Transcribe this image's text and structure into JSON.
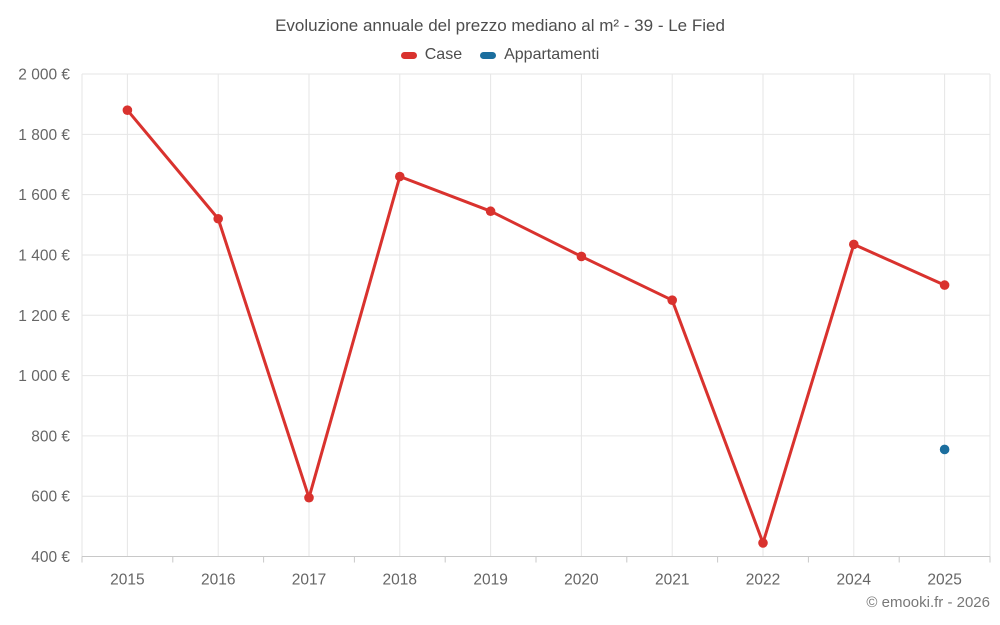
{
  "title": "Evoluzione annuale del prezzo mediano al m² - 39 - Le Fied",
  "legend": {
    "items": [
      {
        "label": "Case",
        "color": "#d9322e"
      },
      {
        "label": "Appartamenti",
        "color": "#1b6e9e"
      }
    ]
  },
  "attribution": "© emooki.fr - 2026",
  "colors": {
    "grid": "#e6e6e6",
    "axis_line": "#c8c8c8",
    "tick_text": "#666666",
    "title_text": "#4d4d4d"
  },
  "chart_data": {
    "type": "line",
    "title": "Evoluzione annuale del prezzo mediano al m² - 39 - Le Fied",
    "categories": [
      "2015",
      "2016",
      "2017",
      "2018",
      "2019",
      "2020",
      "2021",
      "2022",
      "2024",
      "2025"
    ],
    "series": [
      {
        "name": "Case",
        "color": "#d9322e",
        "values": [
          1880,
          1520,
          595,
          1660,
          1545,
          1395,
          1250,
          445,
          1435,
          1300
        ]
      },
      {
        "name": "Appartamenti",
        "color": "#1b6e9e",
        "values": [
          null,
          null,
          null,
          null,
          null,
          null,
          null,
          null,
          null,
          755
        ]
      }
    ],
    "xlabel": "",
    "ylabel": "",
    "ylim": [
      400,
      2000
    ],
    "ytick_step": 200,
    "ytick_suffix": " €",
    "grid": true,
    "legend_position": "top"
  }
}
